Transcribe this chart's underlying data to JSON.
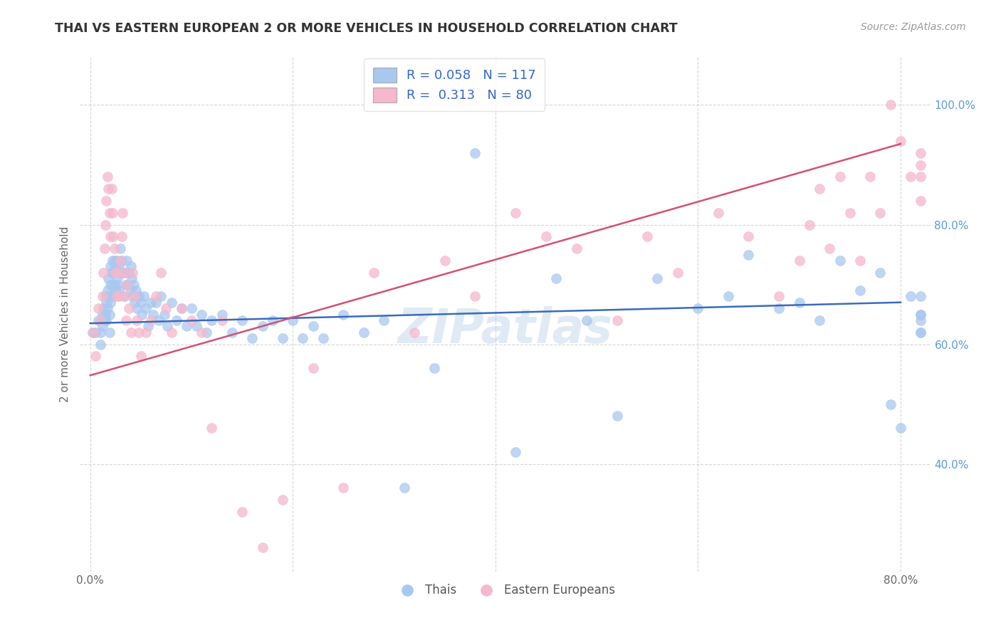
{
  "title": "THAI VS EASTERN EUROPEAN 2 OR MORE VEHICLES IN HOUSEHOLD CORRELATION CHART",
  "source": "Source: ZipAtlas.com",
  "ylabel": "2 or more Vehicles in Household",
  "xlim": [
    -0.01,
    0.83
  ],
  "ylim": [
    0.22,
    1.08
  ],
  "xtick_vals": [
    0.0,
    0.2,
    0.4,
    0.6,
    0.8
  ],
  "xtick_labels": [
    "0.0%",
    "",
    "",
    "",
    "80.0%"
  ],
  "ytick_vals": [
    0.4,
    0.6,
    0.8,
    1.0
  ],
  "ytick_labels": [
    "40.0%",
    "60.0%",
    "80.0%",
    "100.0%"
  ],
  "blue_color": "#A8C8F0",
  "pink_color": "#F5B8CC",
  "blue_line_color": "#3A6BBB",
  "pink_line_color": "#D45070",
  "legend_blue_label": "R = 0.058   N = 117",
  "legend_pink_label": "R =  0.313   N = 80",
  "legend_thais": "Thais",
  "legend_eastern": "Eastern Europeans",
  "watermark": "ZIPatlas",
  "blue_line_x0": 0.0,
  "blue_line_y0": 0.635,
  "blue_line_x1": 0.8,
  "blue_line_y1": 0.67,
  "pink_line_x0": 0.0,
  "pink_line_y0": 0.548,
  "pink_line_x1": 0.8,
  "pink_line_y1": 0.935,
  "blue_pts_x": [
    0.002,
    0.005,
    0.008,
    0.01,
    0.01,
    0.012,
    0.012,
    0.013,
    0.014,
    0.015,
    0.015,
    0.016,
    0.016,
    0.017,
    0.017,
    0.018,
    0.018,
    0.019,
    0.019,
    0.02,
    0.02,
    0.02,
    0.021,
    0.021,
    0.022,
    0.022,
    0.023,
    0.023,
    0.024,
    0.024,
    0.025,
    0.025,
    0.026,
    0.026,
    0.027,
    0.028,
    0.028,
    0.03,
    0.03,
    0.031,
    0.032,
    0.033,
    0.034,
    0.035,
    0.036,
    0.037,
    0.038,
    0.04,
    0.04,
    0.041,
    0.042,
    0.043,
    0.044,
    0.045,
    0.046,
    0.048,
    0.05,
    0.051,
    0.053,
    0.055,
    0.057,
    0.06,
    0.062,
    0.065,
    0.068,
    0.07,
    0.073,
    0.076,
    0.08,
    0.085,
    0.09,
    0.095,
    0.1,
    0.105,
    0.11,
    0.115,
    0.12,
    0.13,
    0.14,
    0.15,
    0.16,
    0.17,
    0.18,
    0.19,
    0.2,
    0.21,
    0.22,
    0.23,
    0.25,
    0.27,
    0.29,
    0.31,
    0.34,
    0.38,
    0.42,
    0.46,
    0.49,
    0.52,
    0.56,
    0.6,
    0.63,
    0.65,
    0.68,
    0.7,
    0.72,
    0.74,
    0.76,
    0.78,
    0.79,
    0.8,
    0.81,
    0.82,
    0.82,
    0.82,
    0.82,
    0.82,
    0.82
  ],
  "blue_pts_y": [
    0.62,
    0.62,
    0.64,
    0.62,
    0.6,
    0.65,
    0.63,
    0.66,
    0.64,
    0.68,
    0.65,
    0.67,
    0.64,
    0.69,
    0.66,
    0.71,
    0.68,
    0.65,
    0.62,
    0.73,
    0.7,
    0.67,
    0.72,
    0.68,
    0.74,
    0.7,
    0.72,
    0.68,
    0.74,
    0.7,
    0.73,
    0.69,
    0.74,
    0.7,
    0.71,
    0.73,
    0.69,
    0.76,
    0.72,
    0.74,
    0.72,
    0.68,
    0.72,
    0.7,
    0.74,
    0.7,
    0.72,
    0.73,
    0.69,
    0.71,
    0.68,
    0.7,
    0.67,
    0.69,
    0.66,
    0.68,
    0.67,
    0.65,
    0.68,
    0.66,
    0.63,
    0.67,
    0.65,
    0.67,
    0.64,
    0.68,
    0.65,
    0.63,
    0.67,
    0.64,
    0.66,
    0.63,
    0.66,
    0.63,
    0.65,
    0.62,
    0.64,
    0.65,
    0.62,
    0.64,
    0.61,
    0.63,
    0.64,
    0.61,
    0.64,
    0.61,
    0.63,
    0.61,
    0.65,
    0.62,
    0.64,
    0.36,
    0.56,
    0.92,
    0.42,
    0.71,
    0.64,
    0.48,
    0.71,
    0.66,
    0.68,
    0.75,
    0.66,
    0.67,
    0.64,
    0.74,
    0.69,
    0.72,
    0.5,
    0.46,
    0.68,
    0.65,
    0.62,
    0.64,
    0.65,
    0.62,
    0.68
  ],
  "pink_pts_x": [
    0.003,
    0.005,
    0.008,
    0.01,
    0.012,
    0.013,
    0.014,
    0.015,
    0.016,
    0.017,
    0.018,
    0.019,
    0.02,
    0.021,
    0.022,
    0.023,
    0.024,
    0.025,
    0.026,
    0.027,
    0.028,
    0.03,
    0.031,
    0.032,
    0.033,
    0.034,
    0.035,
    0.036,
    0.038,
    0.04,
    0.042,
    0.044,
    0.046,
    0.048,
    0.05,
    0.055,
    0.06,
    0.065,
    0.07,
    0.075,
    0.08,
    0.09,
    0.1,
    0.11,
    0.12,
    0.13,
    0.15,
    0.17,
    0.19,
    0.22,
    0.25,
    0.28,
    0.32,
    0.35,
    0.38,
    0.42,
    0.45,
    0.48,
    0.52,
    0.55,
    0.58,
    0.62,
    0.65,
    0.68,
    0.7,
    0.71,
    0.72,
    0.73,
    0.74,
    0.75,
    0.76,
    0.77,
    0.78,
    0.79,
    0.8,
    0.81,
    0.82,
    0.82,
    0.82,
    0.82
  ],
  "pink_pts_y": [
    0.62,
    0.58,
    0.66,
    0.64,
    0.68,
    0.72,
    0.76,
    0.8,
    0.84,
    0.88,
    0.86,
    0.82,
    0.78,
    0.86,
    0.82,
    0.78,
    0.76,
    0.72,
    0.68,
    0.72,
    0.68,
    0.74,
    0.78,
    0.82,
    0.72,
    0.68,
    0.64,
    0.7,
    0.66,
    0.62,
    0.72,
    0.68,
    0.64,
    0.62,
    0.58,
    0.62,
    0.64,
    0.68,
    0.72,
    0.66,
    0.62,
    0.66,
    0.64,
    0.62,
    0.46,
    0.64,
    0.32,
    0.26,
    0.34,
    0.56,
    0.36,
    0.72,
    0.62,
    0.74,
    0.68,
    0.82,
    0.78,
    0.76,
    0.64,
    0.78,
    0.72,
    0.82,
    0.78,
    0.68,
    0.74,
    0.8,
    0.86,
    0.76,
    0.88,
    0.82,
    0.74,
    0.88,
    0.82,
    1.0,
    0.94,
    0.88,
    0.92,
    0.88,
    0.84,
    0.9
  ]
}
